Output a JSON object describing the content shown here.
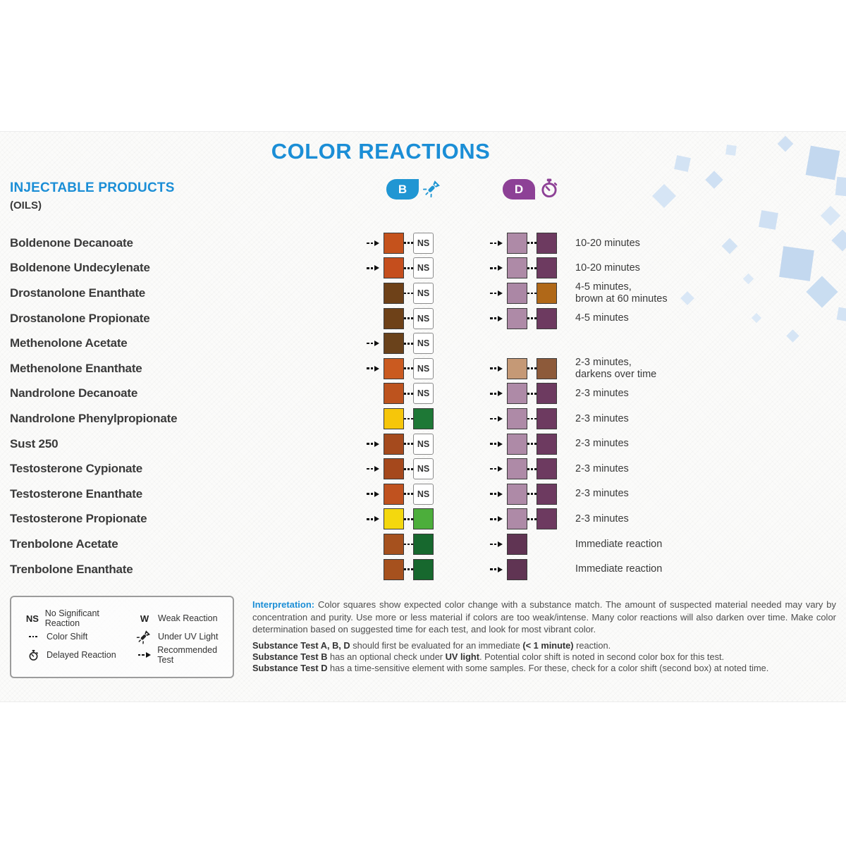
{
  "title": "COLOR REACTIONS",
  "section": {
    "heading": "INJECTABLE PRODUCTS",
    "subheading": "(OILS)"
  },
  "tests": [
    {
      "label": "B",
      "color": "#2096d3",
      "icon": "uv-flashlight-icon"
    },
    {
      "label": "D",
      "color": "#8d4196",
      "icon": "stopwatch-icon"
    }
  ],
  "result_labels": {
    "ns": "NS"
  },
  "rows": [
    {
      "name": "Boldenone Decanoate",
      "b": {
        "rec": true,
        "c1": "#c5521c",
        "ns": true
      },
      "d": {
        "rec": true,
        "c1": "#ae8aa7",
        "c2": "#6d3a60",
        "note": [
          "10-20 minutes"
        ]
      }
    },
    {
      "name": "Boldenone Undecylenate",
      "b": {
        "rec": true,
        "c1": "#c54e1d",
        "ns": true
      },
      "d": {
        "rec": true,
        "c1": "#ae8aa7",
        "c2": "#6d3a60",
        "note": [
          "10-20 minutes"
        ]
      }
    },
    {
      "name": "Drostanolone Enanthate",
      "b": {
        "rec": false,
        "c1": "#6e4118",
        "ns": true
      },
      "d": {
        "rec": true,
        "c1": "#ab87a5",
        "c2": "#b06818",
        "note": [
          "4-5 minutes,",
          "brown at 60 minutes"
        ]
      }
    },
    {
      "name": "Drostanolone Propionate",
      "b": {
        "rec": false,
        "c1": "#6e4118",
        "ns": true
      },
      "d": {
        "rec": true,
        "c1": "#ae8aa7",
        "c2": "#6d3a60",
        "note": [
          "4-5 minutes"
        ]
      }
    },
    {
      "name": "Methenolone Acetate",
      "b": {
        "rec": true,
        "c1": "#6a421b",
        "ns": true
      },
      "d": null
    },
    {
      "name": "Methenolone Enanthate",
      "b": {
        "rec": true,
        "c1": "#ca5a20",
        "ns": true
      },
      "d": {
        "rec": true,
        "c1": "#c59976",
        "c2": "#8d5a3a",
        "note": [
          "2-3 minutes,",
          "darkens over time"
        ]
      }
    },
    {
      "name": "Nandrolone Decanoate",
      "b": {
        "rec": false,
        "c1": "#bd531e",
        "ns": true
      },
      "d": {
        "rec": true,
        "c1": "#ae8aa7",
        "c2": "#6d3a60",
        "note": [
          "2-3 minutes"
        ]
      }
    },
    {
      "name": "Nandrolone Phenylpropionate",
      "b": {
        "rec": false,
        "c1": "#f6c60a",
        "c2": "#1e7836"
      },
      "d": {
        "rec": true,
        "c1": "#ae8aa7",
        "c2": "#6d3a60",
        "note": [
          "2-3 minutes"
        ]
      }
    },
    {
      "name": "Sust 250",
      "b": {
        "rec": true,
        "c1": "#a54a1d",
        "ns": true
      },
      "d": {
        "rec": true,
        "c1": "#ae8aa7",
        "c2": "#6d3a60",
        "note": [
          "2-3 minutes"
        ]
      }
    },
    {
      "name": "Testosterone Cypionate",
      "b": {
        "rec": true,
        "c1": "#a5481c",
        "ns": true
      },
      "d": {
        "rec": true,
        "c1": "#ae8aa7",
        "c2": "#6d3a60",
        "note": [
          "2-3 minutes"
        ]
      }
    },
    {
      "name": "Testosterone Enanthate",
      "b": {
        "rec": true,
        "c1": "#c0521f",
        "ns": true
      },
      "d": {
        "rec": true,
        "c1": "#ae8aa7",
        "c2": "#6d3a60",
        "note": [
          "2-3 minutes"
        ]
      }
    },
    {
      "name": "Testosterone Propionate",
      "b": {
        "rec": true,
        "c1": "#f4d80e",
        "c2": "#4cae3b"
      },
      "d": {
        "rec": true,
        "c1": "#ae8aa7",
        "c2": "#6d3a60",
        "note": [
          "2-3 minutes"
        ]
      }
    },
    {
      "name": "Trenbolone Acetate",
      "b": {
        "rec": false,
        "c1": "#a6511e",
        "c2": "#17682e"
      },
      "d": {
        "rec": true,
        "c1": "#603453",
        "note": [
          "Immediate reaction"
        ]
      }
    },
    {
      "name": "Trenbolone Enanthate",
      "b": {
        "rec": false,
        "c1": "#a6511e",
        "c2": "#17682e"
      },
      "d": {
        "rec": true,
        "c1": "#603453",
        "note": [
          "Immediate reaction"
        ]
      }
    }
  ],
  "legend": [
    {
      "icon": "ns-text",
      "symbol": "NS",
      "label": "No Significant Reaction"
    },
    {
      "icon": "color-shift-dots",
      "symbol": "",
      "label": "Color Shift"
    },
    {
      "icon": "stopwatch-icon",
      "symbol": "",
      "label": "Delayed Reaction"
    },
    {
      "icon": "w-text",
      "symbol": "W",
      "label": "Weak Reaction"
    },
    {
      "icon": "uv-flashlight-icon",
      "symbol": "",
      "label": "Under UV Light"
    },
    {
      "icon": "recommended-arrow",
      "symbol": "",
      "label": "Recommended Test"
    }
  ],
  "interpretation": {
    "lead": "Interpretation:",
    "body": "Color squares show expected color change with a substance match. The amount of suspected material needed may vary by concentration and purity. Use more or less material if colors are too weak/intense. Many color reactions will also darken over time. Make color determination based on suggested time for each test, and look for most vibrant color."
  },
  "notes": [
    [
      {
        "b": 1,
        "t": "Substance Test A, B, D"
      },
      {
        "t": " should first be evaluated for an immediate "
      },
      {
        "b": 1,
        "t": "(< 1 minute)"
      },
      {
        "t": " reaction."
      }
    ],
    [
      {
        "b": 1,
        "t": "Substance Test B"
      },
      {
        "t": " has an optional check under "
      },
      {
        "b": 1,
        "t": "UV light"
      },
      {
        "t": ". Potential color shift is noted in second color box for this test."
      }
    ],
    [
      {
        "b": 1,
        "t": "Substance Test D"
      },
      {
        "t": " has a time-sensitive element with some samples. For these, check for a color shift (second box) at noted time."
      }
    ]
  ]
}
